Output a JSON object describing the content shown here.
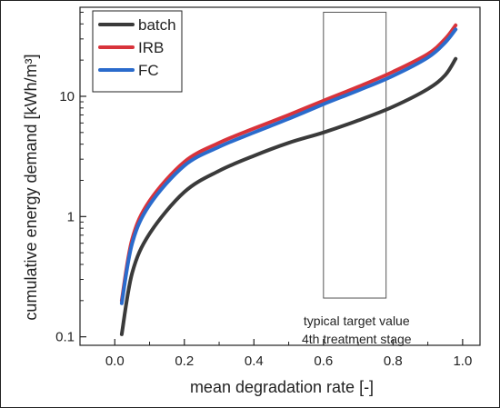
{
  "chart_data": {
    "type": "line",
    "title": "",
    "xlabel": "mean degradation rate [-]",
    "ylabel": "cumulative energy demand [kWh/m³]",
    "xlim": [
      -0.1,
      1.05
    ],
    "ylim": [
      0.085,
      55
    ],
    "yscale": "log",
    "xticks": [
      0,
      0.2,
      0.4,
      0.6,
      0.8,
      1
    ],
    "xtick_labels": [
      "0.0",
      "0.2",
      "0.4",
      "0.6",
      "0.8",
      "1.0"
    ],
    "yticks": [
      0.1,
      1,
      10
    ],
    "ytick_labels": [
      "0.1",
      "1",
      "10"
    ],
    "grid": false,
    "legend_position": "top-left",
    "x": [
      0.02,
      0.05,
      0.1,
      0.2,
      0.3,
      0.4,
      0.5,
      0.6,
      0.7,
      0.8,
      0.9,
      0.95,
      0.98
    ],
    "series": [
      {
        "name": "batch",
        "color": "#3a3a3a",
        "values": [
          0.105,
          0.34,
          0.72,
          1.6,
          2.4,
          3.2,
          4.1,
          5.0,
          6.3,
          8.2,
          11.5,
          15.0,
          20.5
        ]
      },
      {
        "name": "IRB",
        "color": "#d8333b",
        "values": [
          0.2,
          0.65,
          1.35,
          2.85,
          4.1,
          5.4,
          7.0,
          9.2,
          12.0,
          16.0,
          22.5,
          30.0,
          39.0
        ]
      },
      {
        "name": "FC",
        "color": "#2a6bcc",
        "values": [
          0.19,
          0.6,
          1.25,
          2.65,
          3.8,
          5.0,
          6.5,
          8.6,
          11.2,
          14.8,
          21.0,
          28.0,
          36.0
        ]
      }
    ],
    "annotation": {
      "x_range": [
        0.6,
        0.78
      ],
      "y_range": [
        0.21,
        50
      ],
      "lines": [
        "typical target value",
        "4th treatment stage"
      ]
    }
  }
}
